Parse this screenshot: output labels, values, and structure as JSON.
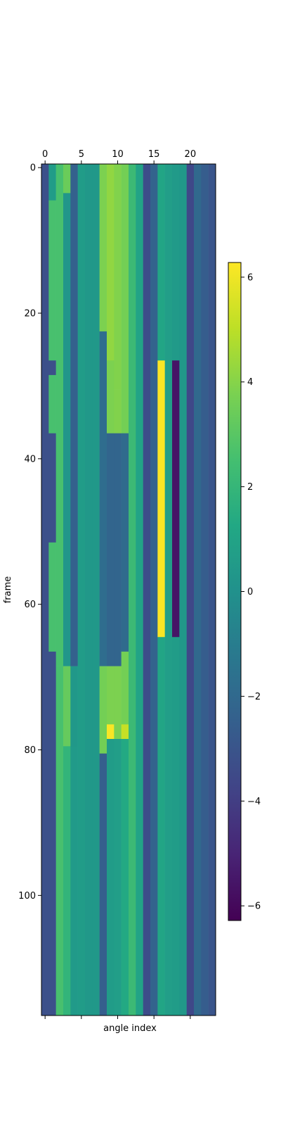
{
  "chart_data": {
    "type": "heatmap",
    "colormap": "viridis",
    "xlabel": "angle index",
    "ylabel": "frame",
    "x_ticks": [
      0,
      5,
      10,
      15,
      20
    ],
    "x_tick_labels": [
      "0",
      "5",
      "10",
      "15",
      "20"
    ],
    "y_ticks": [
      0,
      20,
      40,
      60,
      80,
      100
    ],
    "y_tick_labels": [
      "0",
      "20",
      "40",
      "60",
      "80",
      "100"
    ],
    "x_range": [
      -0.5,
      23.5
    ],
    "y_range": [
      -0.5,
      116.5
    ],
    "columns": 24,
    "rows": 117,
    "value_range": [
      -6.28,
      6.28
    ],
    "colorbar_ticks": [
      6,
      4,
      2,
      0,
      -2,
      -4,
      -6
    ],
    "colorbar_tick_labels": [
      "6",
      "4",
      "2",
      "0",
      "−2",
      "−4",
      "−6"
    ],
    "column_segments": [
      [
        {
          "from": 0,
          "to": 116,
          "value": -3.2
        }
      ],
      [
        {
          "from": 0,
          "to": 4,
          "value": 0.6
        },
        {
          "from": 5,
          "to": 26,
          "value": 2.6
        },
        {
          "from": 27,
          "to": 28,
          "value": -3.2
        },
        {
          "from": 29,
          "to": 36,
          "value": 2.6
        },
        {
          "from": 37,
          "to": 51,
          "value": -3.2
        },
        {
          "from": 52,
          "to": 66,
          "value": 2.6
        },
        {
          "from": 67,
          "to": 116,
          "value": -3.2
        }
      ],
      [
        {
          "from": 0,
          "to": 68,
          "value": 2.6
        },
        {
          "from": 69,
          "to": 116,
          "value": 2.6
        }
      ],
      [
        {
          "from": 0,
          "to": 3,
          "value": 3.4
        },
        {
          "from": 4,
          "to": 68,
          "value": 0.3
        },
        {
          "from": 69,
          "to": 79,
          "value": 3.3
        },
        {
          "from": 80,
          "to": 116,
          "value": 1.9
        }
      ],
      [
        {
          "from": 0,
          "to": 68,
          "value": -2.4
        },
        {
          "from": 69,
          "to": 79,
          "value": 0.4
        },
        {
          "from": 80,
          "to": 116,
          "value": 0.5
        }
      ],
      [
        {
          "from": 0,
          "to": 116,
          "value": 0.6
        }
      ],
      [
        {
          "from": 0,
          "to": 116,
          "value": 0.4
        }
      ],
      [
        {
          "from": 0,
          "to": 116,
          "value": 0.4
        }
      ],
      [
        {
          "from": 0,
          "to": 22,
          "value": 3.8
        },
        {
          "from": 23,
          "to": 68,
          "value": -1.8
        },
        {
          "from": 69,
          "to": 80,
          "value": 3.6
        },
        {
          "from": 81,
          "to": 116,
          "value": -2.5
        }
      ],
      [
        {
          "from": 0,
          "to": 26,
          "value": 4.2
        },
        {
          "from": 27,
          "to": 36,
          "value": 3.8
        },
        {
          "from": 37,
          "to": 68,
          "value": -2.2
        },
        {
          "from": 69,
          "to": 76,
          "value": 3.8
        },
        {
          "from": 77,
          "to": 78,
          "value": 6.2
        },
        {
          "from": 79,
          "to": 116,
          "value": 0.6
        }
      ],
      [
        {
          "from": 0,
          "to": 30,
          "value": 3.9
        },
        {
          "from": 31,
          "to": 36,
          "value": 3.9
        },
        {
          "from": 37,
          "to": 68,
          "value": -2.2
        },
        {
          "from": 69,
          "to": 78,
          "value": 3.8
        },
        {
          "from": 79,
          "to": 116,
          "value": 0.7
        }
      ],
      [
        {
          "from": 0,
          "to": 36,
          "value": 3.6
        },
        {
          "from": 37,
          "to": 66,
          "value": -1.9
        },
        {
          "from": 67,
          "to": 76,
          "value": 3.6
        },
        {
          "from": 77,
          "to": 78,
          "value": 5.2
        },
        {
          "from": 79,
          "to": 116,
          "value": 1.3
        }
      ],
      [
        {
          "from": 0,
          "to": 116,
          "value": 2.2
        }
      ],
      [
        {
          "from": 0,
          "to": 116,
          "value": 1.0
        }
      ],
      [
        {
          "from": 0,
          "to": 116,
          "value": -3.4
        }
      ],
      [
        {
          "from": 0,
          "to": 116,
          "value": -2.3
        }
      ],
      [
        {
          "from": 0,
          "to": 26,
          "value": 1.1
        },
        {
          "from": 27,
          "to": 64,
          "value": 6.2
        },
        {
          "from": 65,
          "to": 116,
          "value": 1.1
        }
      ],
      [
        {
          "from": 0,
          "to": 116,
          "value": 0.7
        }
      ],
      [
        {
          "from": 0,
          "to": 26,
          "value": 0.5
        },
        {
          "from": 27,
          "to": 64,
          "value": -5.6
        },
        {
          "from": 65,
          "to": 116,
          "value": 0.6
        }
      ],
      [
        {
          "from": 0,
          "to": 116,
          "value": 0.4
        }
      ],
      [
        {
          "from": 0,
          "to": 116,
          "value": -3.6
        }
      ],
      [
        {
          "from": 0,
          "to": 116,
          "value": -2.0
        }
      ],
      [
        {
          "from": 0,
          "to": 116,
          "value": -2.6
        }
      ],
      [
        {
          "from": 0,
          "to": 116,
          "value": -3.0
        }
      ]
    ]
  }
}
